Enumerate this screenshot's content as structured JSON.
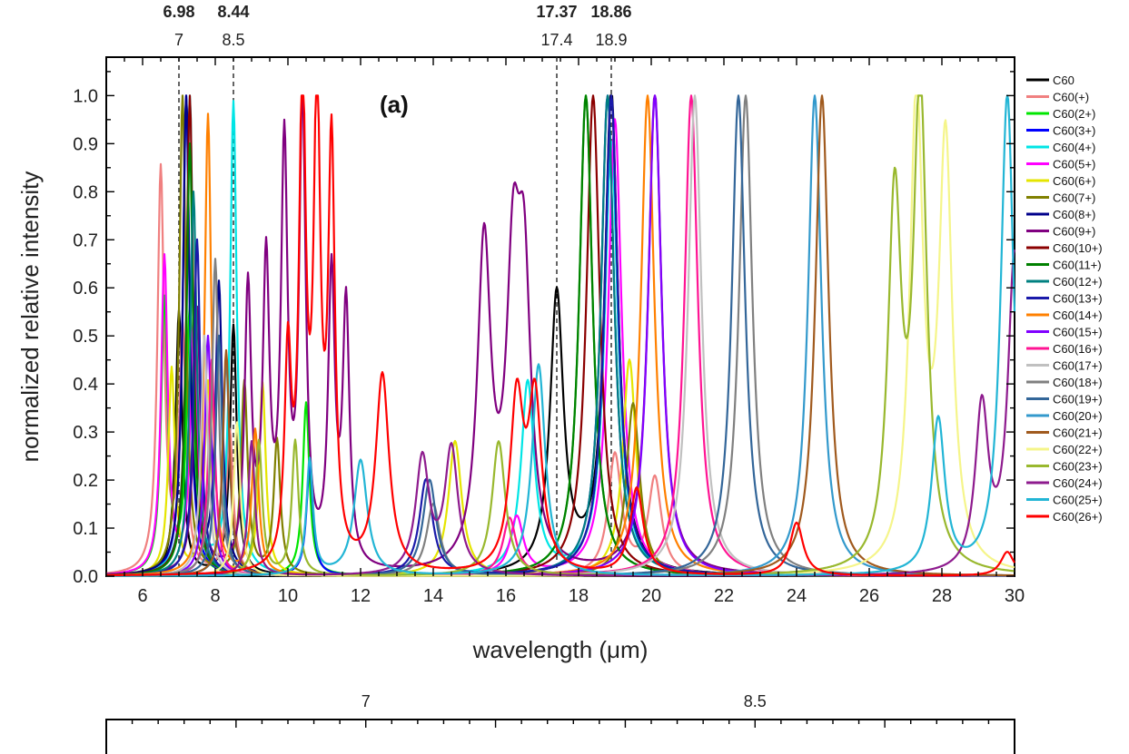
{
  "chart_data": [
    {
      "type": "line",
      "panel_label": "(a)",
      "xlabel": "wavelength (μm)",
      "ylabel": "normalized relative intensity",
      "xlim": [
        5,
        30
      ],
      "ylim": [
        0,
        1.08
      ],
      "x_ticks": [
        6,
        8,
        10,
        12,
        14,
        16,
        18,
        20,
        22,
        24,
        26,
        28,
        30
      ],
      "y_ticks": [
        "0.0",
        "0.1",
        "0.2",
        "0.3",
        "0.4",
        "0.5",
        "0.6",
        "0.7",
        "0.8",
        "0.9",
        "1.0"
      ],
      "grid": false,
      "legend_position": "right",
      "reference_lines": [
        {
          "x": 7.0,
          "label": "7",
          "upper_label": "6.98"
        },
        {
          "x": 8.5,
          "label": "8.5",
          "upper_label": "8.44"
        },
        {
          "x": 17.4,
          "label": "17.4",
          "upper_label": "17.37"
        },
        {
          "x": 18.9,
          "label": "18.9",
          "upper_label": "18.86"
        }
      ],
      "series": [
        {
          "name": "C60",
          "color": "#000000",
          "peaks": [
            [
              7.0,
              0.55
            ],
            [
              8.5,
              0.52
            ],
            [
              17.4,
              0.58
            ],
            [
              18.9,
              1.0
            ]
          ]
        },
        {
          "name": "C60(+)",
          "color": "#f08080",
          "peaks": [
            [
              6.5,
              0.84
            ],
            [
              7.1,
              0.5
            ],
            [
              8.4,
              0.3
            ],
            [
              19.0,
              0.25
            ],
            [
              20.1,
              0.2
            ]
          ]
        },
        {
          "name": "C60(2+)",
          "color": "#00e600",
          "peaks": [
            [
              6.6,
              0.57
            ],
            [
              7.3,
              0.55
            ],
            [
              10.5,
              0.36
            ],
            [
              18.2,
              1.0
            ]
          ]
        },
        {
          "name": "C60(3+)",
          "color": "#0000ff",
          "peaks": [
            [
              7.2,
              1.0
            ],
            [
              10.6,
              0.23
            ],
            [
              18.8,
              1.0
            ]
          ]
        },
        {
          "name": "C60(4+)",
          "color": "#00e5e5",
          "peaks": [
            [
              7.3,
              1.0
            ],
            [
              8.5,
              0.98
            ],
            [
              16.6,
              0.4
            ],
            [
              18.9,
              0.9
            ]
          ]
        },
        {
          "name": "C60(5+)",
          "color": "#ff00ff",
          "peaks": [
            [
              6.6,
              0.66
            ],
            [
              7.4,
              0.52
            ],
            [
              16.3,
              0.12
            ],
            [
              19.0,
              0.95
            ]
          ]
        },
        {
          "name": "C60(6+)",
          "color": "#e5e500",
          "peaks": [
            [
              6.8,
              0.43
            ],
            [
              7.8,
              0.4
            ],
            [
              9.3,
              0.4
            ],
            [
              14.6,
              0.28
            ],
            [
              19.4,
              0.45
            ]
          ]
        },
        {
          "name": "C60(7+)",
          "color": "#808000",
          "peaks": [
            [
              7.1,
              1.0
            ],
            [
              8.8,
              0.4
            ],
            [
              9.7,
              0.28
            ],
            [
              19.5,
              0.36
            ]
          ]
        },
        {
          "name": "C60(8+)",
          "color": "#00008b",
          "peaks": [
            [
              7.2,
              1.0
            ],
            [
              8.1,
              0.6
            ],
            [
              18.9,
              1.0
            ]
          ]
        },
        {
          "name": "C60(9+)",
          "color": "#800080",
          "peaks": [
            [
              7.5,
              0.55
            ],
            [
              8.9,
              0.58
            ],
            [
              9.4,
              0.62
            ],
            [
              9.9,
              0.86
            ],
            [
              10.4,
              0.95
            ],
            [
              11.2,
              0.6
            ],
            [
              11.6,
              0.54
            ],
            [
              15.4,
              0.67
            ],
            [
              16.2,
              0.56
            ],
            [
              16.5,
              0.55
            ],
            [
              20.1,
              1.0
            ]
          ]
        },
        {
          "name": "C60(10+)",
          "color": "#8b0000",
          "peaks": [
            [
              7.3,
              1.0
            ],
            [
              18.4,
              1.0
            ]
          ]
        },
        {
          "name": "C60(11+)",
          "color": "#008000",
          "peaks": [
            [
              7.3,
              0.9
            ],
            [
              18.2,
              1.0
            ]
          ]
        },
        {
          "name": "C60(12+)",
          "color": "#008080",
          "peaks": [
            [
              7.4,
              0.8
            ],
            [
              18.8,
              1.0
            ]
          ]
        },
        {
          "name": "C60(13+)",
          "color": "#1a1aaa",
          "peaks": [
            [
              7.5,
              0.7
            ],
            [
              13.8,
              0.2
            ],
            [
              18.9,
              1.0
            ]
          ]
        },
        {
          "name": "C60(14+)",
          "color": "#ff8000",
          "peaks": [
            [
              7.8,
              0.96
            ],
            [
              9.1,
              0.3
            ],
            [
              19.9,
              1.0
            ]
          ]
        },
        {
          "name": "C60(15+)",
          "color": "#8000ff",
          "peaks": [
            [
              7.8,
              0.5
            ],
            [
              20.1,
              1.0
            ]
          ]
        },
        {
          "name": "C60(16+)",
          "color": "#ff1493",
          "peaks": [
            [
              7.9,
              0.45
            ],
            [
              16.1,
              0.12
            ],
            [
              21.1,
              1.0
            ]
          ]
        },
        {
          "name": "C60(17+)",
          "color": "#c0c0c0",
          "peaks": [
            [
              7.7,
              0.5
            ],
            [
              21.2,
              1.0
            ]
          ]
        },
        {
          "name": "C60(18+)",
          "color": "#808080",
          "peaks": [
            [
              8.0,
              0.66
            ],
            [
              14.0,
              0.15
            ],
            [
              22.6,
              1.0
            ]
          ]
        },
        {
          "name": "C60(19+)",
          "color": "#336699",
          "peaks": [
            [
              8.1,
              0.5
            ],
            [
              13.9,
              0.2
            ],
            [
              22.4,
              1.0
            ]
          ]
        },
        {
          "name": "C60(20+)",
          "color": "#3399cc",
          "peaks": [
            [
              8.3,
              0.45
            ],
            [
              24.5,
              1.0
            ]
          ]
        },
        {
          "name": "C60(21+)",
          "color": "#a05a1e",
          "peaks": [
            [
              8.3,
              0.47
            ],
            [
              24.7,
              1.0
            ]
          ]
        },
        {
          "name": "C60(22+)",
          "color": "#f5f58a",
          "peaks": [
            [
              8.6,
              0.32
            ],
            [
              27.3,
              0.98
            ],
            [
              28.1,
              0.88
            ]
          ]
        },
        {
          "name": "C60(23+)",
          "color": "#99b82e",
          "peaks": [
            [
              9.2,
              0.28
            ],
            [
              10.2,
              0.28
            ],
            [
              15.8,
              0.28
            ],
            [
              26.7,
              0.76
            ],
            [
              27.4,
              1.0
            ]
          ]
        },
        {
          "name": "C60(24+)",
          "color": "#8e1b8e",
          "peaks": [
            [
              9.0,
              0.28
            ],
            [
              13.7,
              0.24
            ],
            [
              14.5,
              0.26
            ],
            [
              29.1,
              0.34
            ],
            [
              30.0,
              0.66
            ]
          ]
        },
        {
          "name": "C60(25+)",
          "color": "#22b5d5",
          "peaks": [
            [
              10.6,
              0.24
            ],
            [
              12.0,
              0.24
            ],
            [
              16.9,
              0.44
            ],
            [
              27.9,
              0.32
            ],
            [
              29.8,
              1.0
            ]
          ]
        },
        {
          "name": "C60(26+)",
          "color": "#ff0000",
          "peaks": [
            [
              10.0,
              0.43
            ],
            [
              10.4,
              1.0
            ],
            [
              10.8,
              0.96
            ],
            [
              11.2,
              0.86
            ],
            [
              12.6,
              0.41
            ],
            [
              16.3,
              0.35
            ],
            [
              16.8,
              0.35
            ],
            [
              19.6,
              0.18
            ],
            [
              24.0,
              0.11
            ],
            [
              29.8,
              0.05
            ]
          ]
        }
      ]
    },
    {
      "type": "line",
      "reference_lines": [
        {
          "x": 7.0,
          "label": "7"
        },
        {
          "x": 8.5,
          "label": "8.5"
        }
      ]
    }
  ]
}
